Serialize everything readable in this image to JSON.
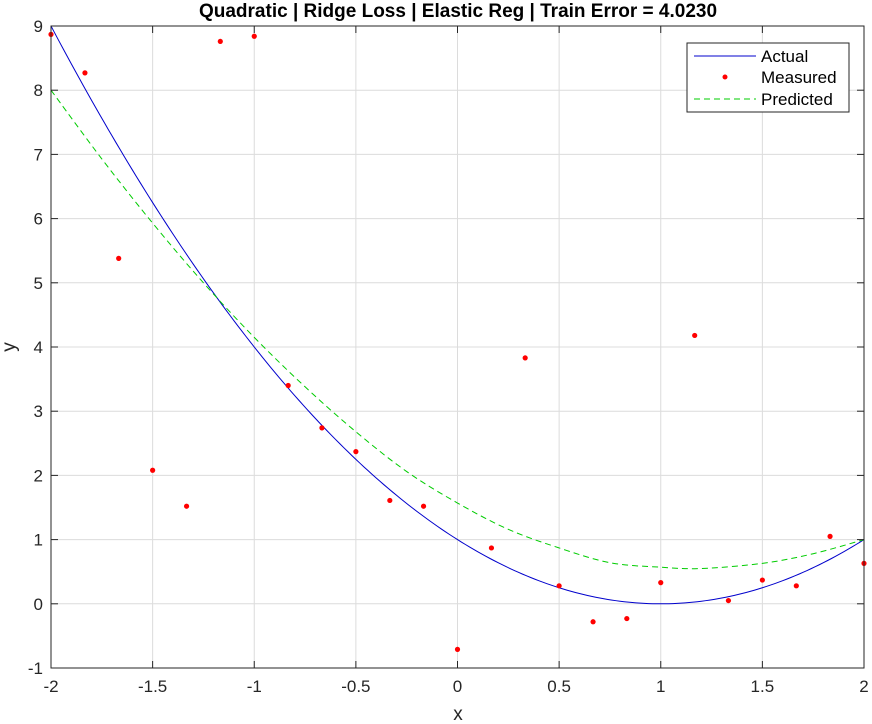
{
  "chart_data": {
    "type": "line",
    "title": "Quadratic | Ridge Loss | Elastic Reg | Train Error = 4.0230",
    "xlabel": "x",
    "ylabel": "y",
    "xlim": [
      -2,
      2
    ],
    "ylim": [
      -1,
      9
    ],
    "xticks": [
      "-2",
      "-1.5",
      "-1",
      "-0.5",
      "0",
      "0.5",
      "1",
      "1.5",
      "2"
    ],
    "yticks": [
      "-1",
      "0",
      "1",
      "2",
      "3",
      "4",
      "5",
      "6",
      "7",
      "8",
      "9"
    ],
    "grid": true,
    "legend_position": "top-right",
    "series": [
      {
        "name": "Actual",
        "style": "solid-line",
        "color": "#0000cc",
        "equation": "y = (x - 1)^2",
        "x": [
          -2,
          -1.75,
          -1.5,
          -1.25,
          -1,
          -0.75,
          -0.5,
          -0.25,
          0,
          0.25,
          0.5,
          0.75,
          1,
          1.25,
          1.5,
          1.75,
          2
        ],
        "y": [
          9,
          7.5625,
          6.25,
          5.0625,
          4,
          3.0625,
          2.25,
          1.5625,
          1,
          0.5625,
          0.25,
          0.0625,
          0,
          0.0625,
          0.25,
          0.5625,
          1
        ]
      },
      {
        "name": "Measured",
        "style": "markers",
        "color": "#ff0000",
        "x": [
          -2.0,
          -1.833,
          -1.667,
          -1.5,
          -1.333,
          -1.167,
          -1.0,
          -0.833,
          -0.667,
          -0.5,
          -0.333,
          -0.167,
          0.0,
          0.167,
          0.333,
          0.5,
          0.667,
          0.833,
          1.0,
          1.167,
          1.333,
          1.5,
          1.667,
          1.833,
          2.0
        ],
        "y": [
          8.87,
          8.27,
          5.38,
          2.08,
          1.52,
          8.76,
          8.84,
          3.4,
          2.74,
          2.37,
          1.61,
          1.52,
          -0.71,
          0.87,
          3.83,
          0.28,
          -0.28,
          -0.23,
          0.33,
          4.18,
          0.05,
          0.37,
          0.28,
          1.05,
          0.63
        ]
      },
      {
        "name": "Predicted",
        "style": "dashed-line",
        "color": "#00cc00",
        "x": [
          -2,
          -1.75,
          -1.5,
          -1.25,
          -1,
          -0.75,
          -0.5,
          -0.25,
          0,
          0.25,
          0.5,
          0.75,
          1,
          1.2,
          1.5,
          1.75,
          2
        ],
        "y": [
          8.0,
          6.93,
          5.93,
          5.0,
          4.15,
          3.38,
          2.68,
          2.06,
          1.57,
          1.16,
          0.87,
          0.64,
          0.57,
          0.55,
          0.63,
          0.78,
          1.0
        ]
      }
    ]
  }
}
